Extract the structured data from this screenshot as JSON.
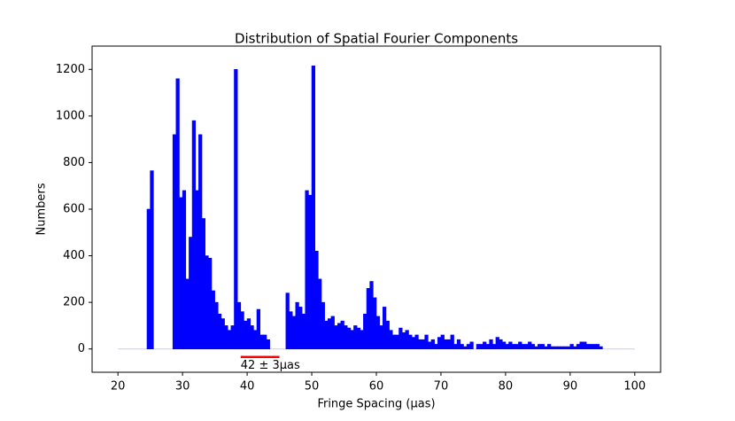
{
  "chart_data": {
    "type": "histogram",
    "title": "Distribution of Spatial Fourier Components",
    "xlabel": "Fringe Spacing (μas)",
    "ylabel": "Numbers",
    "color": "#0000ff",
    "bins": [
      20,
      20.5,
      21,
      21.5,
      22,
      22.5,
      23,
      23.5,
      24,
      24.5,
      25,
      25.5,
      26,
      26.5,
      27,
      27.5,
      28,
      28.5,
      29,
      29.5,
      30,
      30.5,
      31,
      31.5,
      32,
      32.5,
      33,
      33.5,
      34,
      34.5,
      35,
      35.5,
      36,
      36.5,
      37,
      37.5,
      38,
      38.5,
      39,
      39.5,
      40,
      40.5,
      41,
      41.5,
      42,
      42.5,
      43,
      43.5,
      44,
      44.5,
      45,
      45.5,
      46,
      46.5,
      47,
      47.5,
      48,
      48.5,
      49,
      49.5,
      50,
      50.5,
      51,
      51.5,
      52,
      52.5,
      53,
      53.5,
      54,
      54.5,
      55,
      55.5,
      56,
      56.5,
      57,
      57.5,
      58,
      58.5,
      59,
      59.5,
      60,
      60.5,
      61,
      61.5,
      62,
      62.5,
      63,
      63.5,
      64,
      64.5,
      65,
      65.5,
      66,
      66.5,
      67,
      67.5,
      68,
      68.5,
      69,
      69.5,
      70,
      70.5,
      71,
      71.5,
      72,
      72.5,
      73,
      73.5,
      74,
      74.5,
      75,
      75.5,
      76,
      76.5,
      77,
      77.5,
      78,
      78.5,
      79,
      79.5,
      80,
      80.5,
      81,
      81.5,
      82,
      82.5,
      83,
      83.5,
      84,
      84.5,
      85,
      85.5,
      86,
      86.5,
      87,
      87.5,
      88,
      88.5,
      89,
      89.5,
      90,
      90.5,
      91,
      91.5,
      92,
      92.5,
      93,
      93.5,
      94,
      94.5,
      95,
      95.5,
      96,
      96.5,
      97,
      97.5,
      98,
      98.5,
      99,
      99.5,
      100
    ],
    "values": [
      0,
      0,
      0,
      0,
      0,
      0,
      0,
      0,
      0,
      600,
      765,
      0,
      0,
      0,
      0,
      0,
      0,
      920,
      1160,
      650,
      680,
      300,
      480,
      980,
      680,
      920,
      560,
      400,
      390,
      250,
      200,
      150,
      130,
      100,
      80,
      100,
      1200,
      200,
      160,
      120,
      130,
      100,
      80,
      170,
      60,
      60,
      40,
      0,
      0,
      0,
      0,
      0,
      240,
      160,
      140,
      200,
      180,
      150,
      680,
      660,
      1215,
      420,
      300,
      200,
      120,
      130,
      140,
      100,
      110,
      120,
      100,
      90,
      80,
      100,
      90,
      80,
      150,
      260,
      290,
      220,
      140,
      100,
      180,
      120,
      80,
      60,
      60,
      90,
      70,
      80,
      60,
      50,
      60,
      40,
      40,
      60,
      30,
      40,
      20,
      50,
      60,
      40,
      40,
      60,
      20,
      40,
      20,
      10,
      20,
      30,
      0,
      20,
      20,
      30,
      20,
      40,
      20,
      50,
      40,
      30,
      20,
      30,
      20,
      20,
      30,
      20,
      20,
      30,
      20,
      10,
      20,
      20,
      10,
      20,
      10,
      10,
      10,
      10,
      10,
      10,
      20,
      10,
      20,
      30,
      30,
      20,
      20,
      20,
      20,
      10,
      0,
      0,
      0,
      0,
      0,
      0,
      0,
      0,
      0,
      0
    ],
    "xlim": [
      16,
      104
    ],
    "ylim": [
      -100,
      1300
    ],
    "xticks": [
      20,
      30,
      40,
      50,
      60,
      70,
      80,
      90,
      100
    ],
    "yticks": [
      0,
      200,
      400,
      600,
      800,
      1000,
      1200
    ],
    "annotation": {
      "text": "42 ± 3μas",
      "range": [
        39,
        45
      ],
      "color": "#ff0000"
    }
  }
}
